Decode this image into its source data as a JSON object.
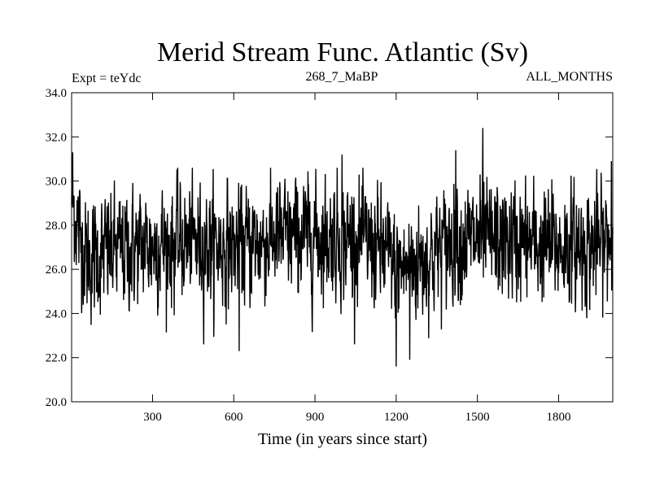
{
  "chart_data": {
    "type": "line",
    "title": "Merid Stream Func. Atlantic (Sv)",
    "left_note": "Expt = teYdc",
    "center_note": "268_7_MaBP",
    "right_note": "ALL_MONTHS",
    "xlabel": "Time (in years since start)",
    "ylabel": "",
    "xlim": [
      1,
      2000
    ],
    "ylim": [
      20.0,
      34.0
    ],
    "x_ticks": [
      300,
      600,
      900,
      1200,
      1500,
      1800
    ],
    "x_tick_labels": [
      "300",
      "600",
      "900",
      "1200",
      "1500",
      "1800"
    ],
    "y_ticks": [
      20,
      22,
      24,
      26,
      28,
      30,
      32,
      34
    ],
    "y_tick_labels": [
      "20.0",
      "22.0",
      "24.0",
      "26.0",
      "28.0",
      "30.0",
      "32.0",
      "34.0"
    ],
    "grid": false,
    "series": [
      {
        "name": "Atlantic meridional stream function",
        "color": "#000000",
        "n_years": 2000,
        "segment_means": [
          [
            1,
            29.2
          ],
          [
            30,
            27.6
          ],
          [
            60,
            26.4
          ],
          [
            150,
            26.8
          ],
          [
            300,
            27.1
          ],
          [
            450,
            27.2
          ],
          [
            600,
            27.0
          ],
          [
            750,
            27.4
          ],
          [
            900,
            27.5
          ],
          [
            1050,
            27.4
          ],
          [
            1150,
            26.8
          ],
          [
            1200,
            26.0
          ],
          [
            1260,
            26.2
          ],
          [
            1350,
            26.8
          ],
          [
            1420,
            27.4
          ],
          [
            1500,
            27.3
          ],
          [
            1650,
            27.2
          ],
          [
            1800,
            27.0
          ],
          [
            1950,
            27.1
          ],
          [
            2000,
            27.4
          ]
        ],
        "spread_sd": 1.3,
        "labeled_extremes": [
          {
            "x": 5,
            "y": 31.3
          },
          {
            "x": 620,
            "y": 22.3
          },
          {
            "x": 1000,
            "y": 31.2
          },
          {
            "x": 1200,
            "y": 21.6
          },
          {
            "x": 1250,
            "y": 21.9
          },
          {
            "x": 1420,
            "y": 31.4
          },
          {
            "x": 1520,
            "y": 32.4
          },
          {
            "x": 1995,
            "y": 30.9
          }
        ]
      }
    ]
  }
}
